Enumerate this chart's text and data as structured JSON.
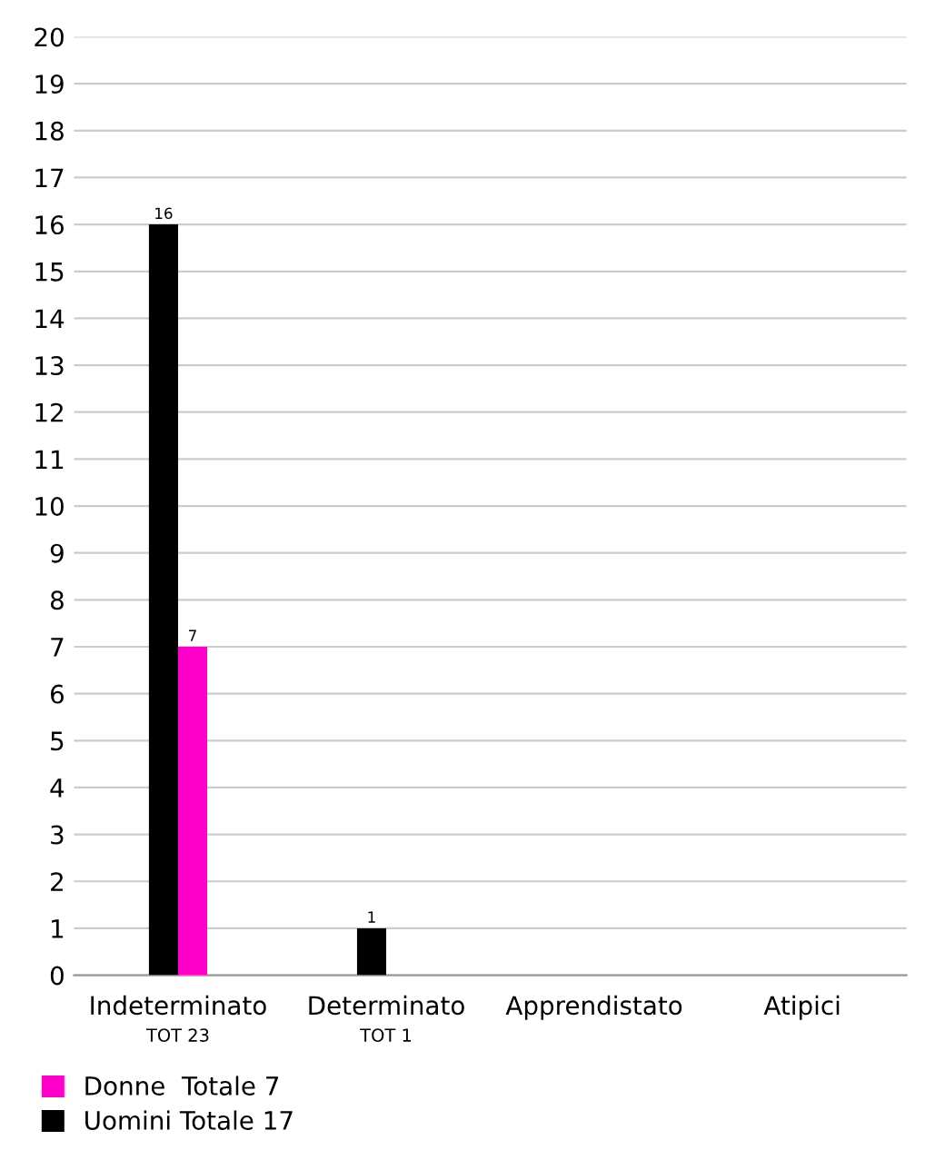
{
  "chart_data": {
    "type": "bar",
    "categories": [
      "Indeterminato\nTOT 23",
      "Determinato\nTOT 1",
      "Apprendistato",
      "Atipici"
    ],
    "series": [
      {
        "name": "Uomini Totale 17",
        "color": "#000000",
        "values": [
          16,
          1,
          0,
          0
        ],
        "value_labels": [
          "16",
          "1",
          null,
          null
        ]
      },
      {
        "name": "Donne  Totale 7",
        "color": "#ff00cc",
        "values": [
          7,
          0,
          0,
          0
        ],
        "value_labels": [
          "7",
          null,
          null,
          null
        ]
      }
    ],
    "ylim": [
      0,
      20
    ],
    "yticks": [
      0,
      1,
      2,
      3,
      4,
      5,
      6,
      7,
      8,
      9,
      10,
      11,
      12,
      13,
      14,
      15,
      16,
      17,
      18,
      19,
      20
    ],
    "grid": "y",
    "legend": "bottom left"
  }
}
